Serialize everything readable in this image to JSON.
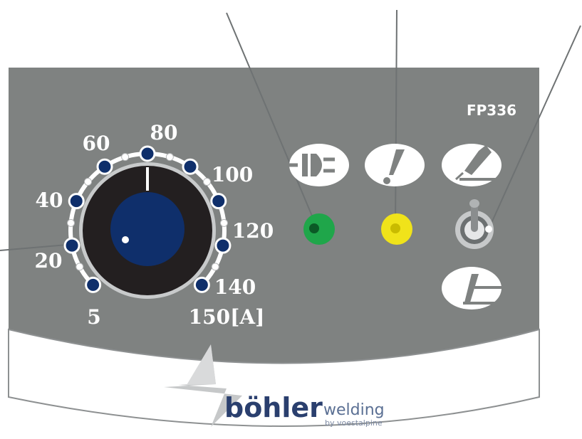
{
  "panel": {
    "model": "FP336",
    "body_color": "#7f8281",
    "accent_color": "#0f2f6b"
  },
  "dial": {
    "scale_labels": [
      "5",
      "20",
      "40",
      "60",
      "80",
      "100",
      "120",
      "140",
      "150[A]"
    ],
    "major_count": 9
  },
  "indicators": {
    "power_lamp_color": "#1fa64a",
    "warning_lamp_color": "#f0e31a"
  },
  "icons": [
    "plug-icon",
    "exclamation-icon",
    "tig-torch-icon",
    "lift-arc-icon"
  ],
  "toggle": {
    "name": "process-toggle-switch"
  },
  "brand": {
    "name": "böhler",
    "word": "welding",
    "sub": "by voestalpine"
  }
}
